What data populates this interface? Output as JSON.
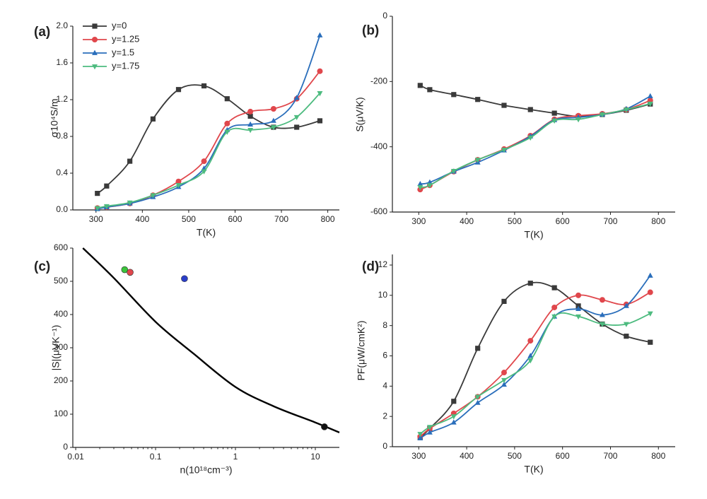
{
  "chart_data": [
    {
      "type": "line",
      "title": "(a)",
      "x_label": "T(K)",
      "y_label": "σ10⁴S/m",
      "smooth": true,
      "legend": "upper left",
      "x": [
        303,
        323,
        373,
        423,
        478,
        533,
        583,
        633,
        683,
        733,
        783
      ],
      "xlim": [
        250,
        825
      ],
      "xticks": [
        300,
        400,
        500,
        600,
        700,
        800
      ],
      "ylim": [
        0,
        2.0
      ],
      "yticks": [
        {
          "value": 0,
          "label": "0.0"
        },
        0.4,
        0.8,
        1.2,
        1.6,
        {
          "value": 2.0,
          "label": "2.0"
        }
      ],
      "series": [
        {
          "name": "y=0",
          "color": "#3a3a3a",
          "marker": "square",
          "values": [
            0.18,
            0.26,
            0.53,
            0.99,
            1.31,
            1.35,
            1.21,
            1.02,
            0.9,
            0.9,
            0.97
          ]
        },
        {
          "name": "y=1.25",
          "color": "#e0474c",
          "marker": "circle",
          "values": [
            0.02,
            0.03,
            0.07,
            0.16,
            0.31,
            0.53,
            0.94,
            1.07,
            1.1,
            1.21,
            1.51
          ]
        },
        {
          "name": "y=1.5",
          "color": "#2a6ebb",
          "marker": "triangle-up",
          "values": [
            0.01,
            0.03,
            0.07,
            0.14,
            0.25,
            0.45,
            0.87,
            0.93,
            0.97,
            1.22,
            1.9
          ]
        },
        {
          "name": "y=1.75",
          "color": "#4dbb7f",
          "marker": "triangle-down",
          "values": [
            0.02,
            0.04,
            0.08,
            0.16,
            0.27,
            0.42,
            0.85,
            0.87,
            0.9,
            1.01,
            1.27
          ]
        }
      ]
    },
    {
      "type": "line",
      "title": "(b)",
      "x_label": "T(K)",
      "y_label": "S(μV/K)",
      "smooth": true,
      "x": [
        303,
        323,
        373,
        423,
        478,
        533,
        583,
        633,
        683,
        733,
        783
      ],
      "xlim": [
        245,
        835
      ],
      "xticks": [
        300,
        400,
        500,
        600,
        700,
        800
      ],
      "ylim": [
        -600,
        0
      ],
      "yticks": [
        -600,
        -400,
        -200,
        0
      ],
      "series": [
        {
          "color": "#3a3a3a",
          "marker": "square",
          "values": [
            -212,
            -225,
            -240,
            -255,
            -273,
            -286,
            -297,
            -307,
            -301,
            -288,
            -269
          ]
        },
        {
          "color": "#e0474c",
          "marker": "circle",
          "values": [
            -531,
            -518,
            -476,
            -440,
            -407,
            -366,
            -316,
            -305,
            -299,
            -286,
            -258
          ]
        },
        {
          "color": "#2a6ebb",
          "marker": "triangle-up",
          "values": [
            -514,
            -509,
            -476,
            -448,
            -411,
            -368,
            -318,
            -310,
            -301,
            -284,
            -245
          ]
        },
        {
          "color": "#4dbb7f",
          "marker": "triangle-down",
          "values": [
            -524,
            -518,
            -474,
            -440,
            -409,
            -372,
            -320,
            -316,
            -301,
            -286,
            -268
          ]
        }
      ]
    },
    {
      "type": "scatter",
      "title": "(c)",
      "x_label": "n(10¹⁸cm⁻³)",
      "y_label": "|S|(μVK⁻¹)",
      "xscale": "log",
      "xlim": [
        0.0092,
        20
      ],
      "xticks": [
        0.01,
        0.1,
        1,
        10
      ],
      "ylim": [
        0,
        600
      ],
      "yticks": [
        0,
        100,
        200,
        300,
        400,
        500,
        600
      ],
      "line": {
        "color": "#000000",
        "x": [
          0.0123,
          0.03,
          0.1,
          0.3,
          1,
          3,
          10,
          20
        ],
        "values": [
          600,
          510,
          378,
          282,
          182,
          124,
          75,
          45
        ]
      },
      "points": {
        "x": [
          0.041,
          0.048,
          0.23,
          13.0
        ],
        "values": [
          535,
          527,
          508,
          62
        ],
        "colors": [
          "#3cc43c",
          "#e0474c",
          "#2a3ec8",
          "#111111"
        ]
      }
    },
    {
      "type": "line",
      "title": "(d)",
      "x_label": "T(K)",
      "y_label": "PF(μW/cmK²)",
      "smooth": true,
      "x": [
        303,
        323,
        373,
        423,
        478,
        533,
        583,
        633,
        683,
        733,
        783
      ],
      "xlim": [
        245,
        835
      ],
      "xticks": [
        300,
        400,
        500,
        600,
        700,
        800
      ],
      "ylim": [
        0,
        12.7
      ],
      "yticks": [
        0,
        2,
        4,
        6,
        8,
        10,
        12
      ],
      "series": [
        {
          "color": "#3a3a3a",
          "marker": "square",
          "values": [
            0.6,
            1.2,
            3.0,
            6.5,
            9.6,
            10.8,
            10.5,
            9.3,
            8.1,
            7.3,
            6.9
          ]
        },
        {
          "color": "#e0474c",
          "marker": "circle",
          "values": [
            0.66,
            1.2,
            2.2,
            3.3,
            4.9,
            7.0,
            9.2,
            10.0,
            9.7,
            9.4,
            10.2
          ]
        },
        {
          "color": "#2a6ebb",
          "marker": "triangle-up",
          "values": [
            0.56,
            0.94,
            1.6,
            2.9,
            4.1,
            6.0,
            8.6,
            9.1,
            8.7,
            9.3,
            11.3
          ]
        },
        {
          "color": "#4dbb7f",
          "marker": "triangle-down",
          "values": [
            0.84,
            1.3,
            2.0,
            3.3,
            4.4,
            5.7,
            8.6,
            8.6,
            8.1,
            8.1,
            8.8
          ]
        }
      ]
    }
  ]
}
